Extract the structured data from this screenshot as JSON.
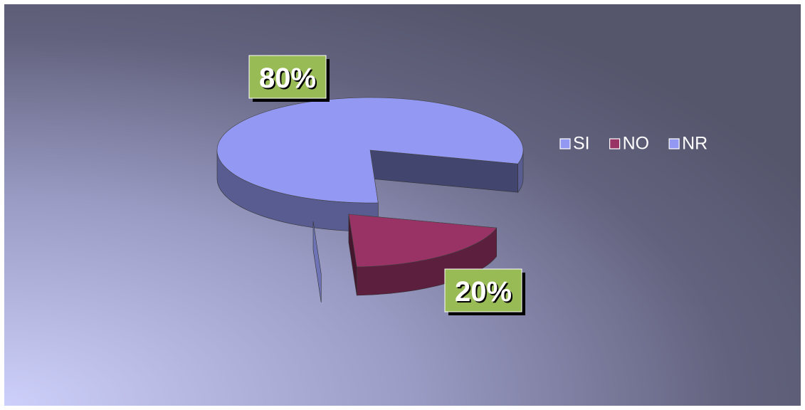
{
  "chart_data": {
    "type": "pie3d",
    "categories": [
      "SI",
      "NO",
      "NR"
    ],
    "values": [
      80,
      20,
      0
    ],
    "value_labels": [
      "80%",
      "20%",
      null
    ],
    "colors": [
      "#9399f2",
      "#993366",
      "#9399f2"
    ],
    "legend": "right"
  }
}
